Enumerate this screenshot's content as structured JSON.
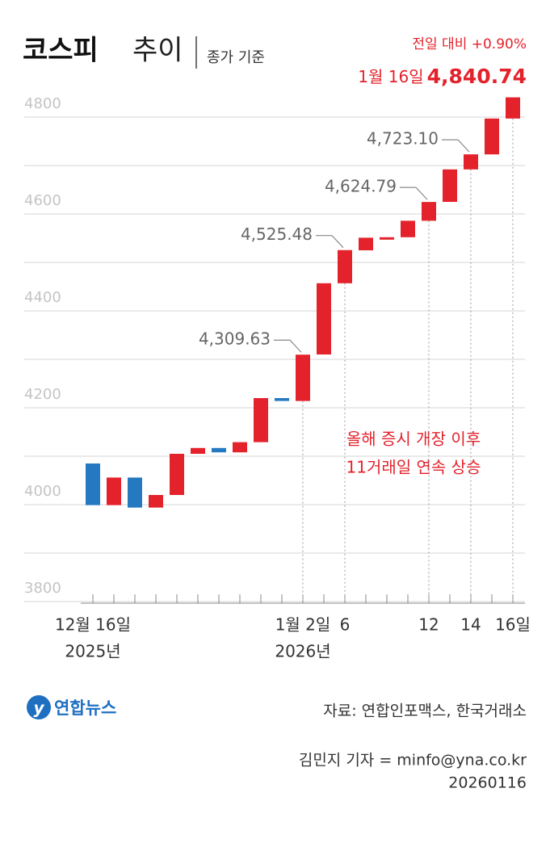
{
  "chart_data": {
    "type": "candlestick",
    "title": "코스피",
    "title_suffix": "추이",
    "subtitle": "종가 기준",
    "change_label": "전일 대비 +0.90%",
    "header_date": "1월 16일",
    "categories": [
      "12월 16일",
      null,
      null,
      null,
      null,
      null,
      null,
      null,
      null,
      null,
      "1월 2일",
      null,
      "6",
      null,
      null,
      null,
      "12",
      null,
      "14",
      null,
      "16일"
    ],
    "category_sublabels": [
      "2025년",
      null,
      null,
      null,
      null,
      null,
      null,
      null,
      null,
      null,
      "2026년",
      null,
      null,
      null,
      null,
      null,
      null,
      null,
      null,
      null,
      null
    ],
    "open": [
      4085,
      3999,
      4056,
      3994,
      4020,
      4105,
      4117,
      4108,
      4129,
      4220,
      4214,
      4310,
      4457,
      4525,
      4551,
      4552,
      4586,
      4625,
      4692,
      4723,
      4797
    ],
    "close": [
      3999,
      4056,
      3994,
      4020,
      4105,
      4117,
      4108,
      4129,
      4220,
      4214,
      4309.63,
      4457,
      4525.48,
      4551,
      4552,
      4586,
      4624.79,
      4692,
      4723.1,
      4797,
      4840.74
    ],
    "value_labels": [
      null,
      null,
      null,
      null,
      null,
      null,
      null,
      null,
      null,
      null,
      "4,309.63",
      null,
      "4,525.48",
      null,
      null,
      null,
      "4,624.79",
      null,
      "4,723.10",
      null,
      "4,840.74"
    ],
    "up_color": "#e3222b",
    "down_color": "#2479c0",
    "ylim": [
      3800,
      4850
    ],
    "yticks": [
      3800,
      4000,
      4200,
      4400,
      4600,
      4800
    ],
    "minor_yticks": [
      3900,
      4100,
      4300,
      4500,
      4700
    ],
    "grid": true,
    "annotation": [
      "올해 증시 개장 이후",
      "11거래일 연속 상승"
    ]
  },
  "footer": {
    "logo": "연합뉴스",
    "source": "자료: 연합인포맥스, 한국거래소",
    "credit": "김민지 기자 = minfo@yna.co.kr",
    "date": "20260116"
  }
}
